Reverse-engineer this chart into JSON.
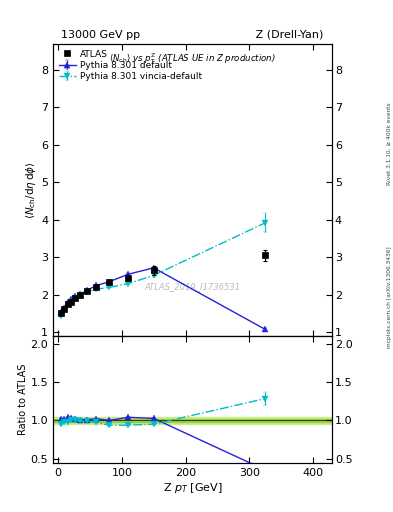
{
  "title_left": "13000 GeV pp",
  "title_right": "Z (Drell-Yan)",
  "plot_title": "<N_{ch}> vs p^{Z}_{T} (ATLAS UE in Z production)",
  "watermark": "ATLAS_2019_I1736531",
  "right_label": "mcplots.cern.ch [arXiv:1306.3436]",
  "right_label2": "Rivet 3.1.10, ≥ 400k events",
  "atlas_x": [
    4.5,
    9,
    15,
    20,
    27,
    35,
    45,
    60,
    80,
    110,
    150,
    325
  ],
  "atlas_y": [
    1.52,
    1.62,
    1.75,
    1.82,
    1.92,
    2.0,
    2.1,
    2.2,
    2.35,
    2.45,
    2.65,
    3.05
  ],
  "atlas_yerr": [
    0.04,
    0.03,
    0.03,
    0.03,
    0.03,
    0.03,
    0.03,
    0.04,
    0.05,
    0.06,
    0.12,
    0.15
  ],
  "py_default_x": [
    4.5,
    9,
    15,
    20,
    27,
    35,
    45,
    60,
    80,
    110,
    150,
    325
  ],
  "py_default_y": [
    1.55,
    1.65,
    1.82,
    1.88,
    1.96,
    2.02,
    2.12,
    2.25,
    2.35,
    2.55,
    2.72,
    1.08
  ],
  "py_default_yerr": [
    0.01,
    0.01,
    0.01,
    0.01,
    0.01,
    0.01,
    0.01,
    0.01,
    0.015,
    0.02,
    0.03,
    0.04
  ],
  "py_vincia_x": [
    4.5,
    9,
    15,
    20,
    27,
    35,
    45,
    60,
    80,
    110,
    150,
    325
  ],
  "py_vincia_y": [
    1.45,
    1.58,
    1.72,
    1.82,
    1.92,
    1.98,
    2.08,
    2.15,
    2.2,
    2.3,
    2.52,
    3.92
  ],
  "py_vincia_yerr": [
    0.015,
    0.012,
    0.012,
    0.012,
    0.012,
    0.012,
    0.012,
    0.015,
    0.018,
    0.022,
    0.035,
    0.25
  ],
  "ylim_main": [
    0.9,
    8.7
  ],
  "ylim_ratio": [
    0.44,
    2.1
  ],
  "xlim": [
    -8,
    430
  ],
  "atlas_color": "#000000",
  "py_default_color": "#2222dd",
  "py_vincia_color": "#00bbcc",
  "band_color": "#ccee88",
  "band_inner_color": "#99cc44",
  "yticks_main": [
    1,
    2,
    3,
    4,
    5,
    6,
    7,
    8
  ],
  "yticks_ratio": [
    0.5,
    1.0,
    1.5,
    2.0
  ],
  "xticks": [
    0,
    100,
    200,
    300,
    400
  ]
}
